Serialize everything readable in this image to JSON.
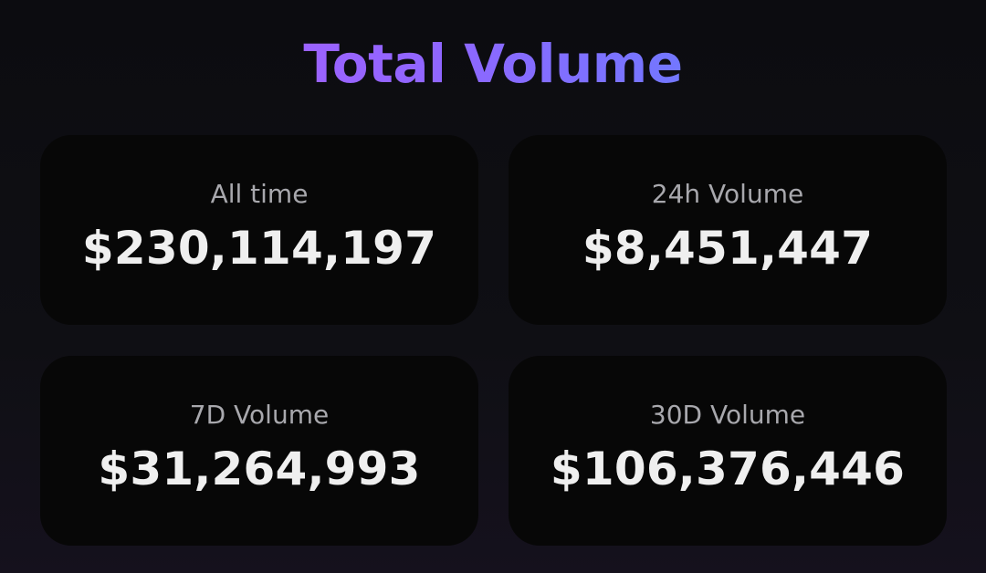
{
  "header": {
    "title": "Total Volume"
  },
  "cards": [
    {
      "label": "All time",
      "value": "$230,114,197"
    },
    {
      "label": "24h Volume",
      "value": "$8,451,447"
    },
    {
      "label": "7D Volume",
      "value": "$31,264,993"
    },
    {
      "label": "30D Volume",
      "value": "$106,376,446"
    }
  ],
  "colors": {
    "title_gradient_start": "#b65bff",
    "title_gradient_end": "#4e8dff",
    "card_background": "#070707",
    "label_color": "#a8a8ad",
    "value_color": "#efefef"
  }
}
